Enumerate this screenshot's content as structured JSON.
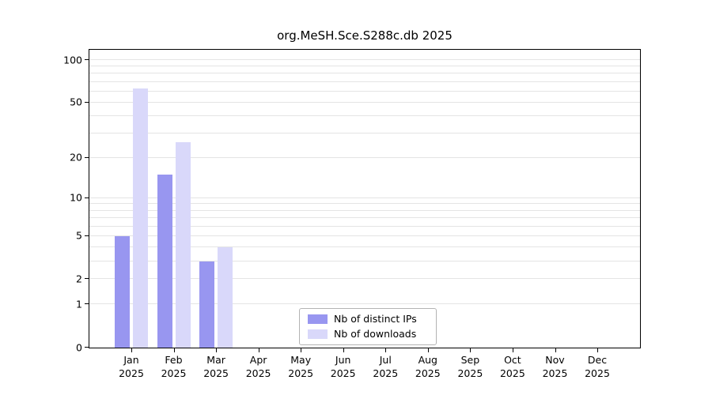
{
  "chart_data": {
    "type": "bar",
    "title": "org.MeSH.Sce.S288c.db 2025",
    "year": "2025",
    "categories": [
      "Jan",
      "Feb",
      "Mar",
      "Apr",
      "May",
      "Jun",
      "Jul",
      "Aug",
      "Sep",
      "Oct",
      "Nov",
      "Dec"
    ],
    "series": [
      {
        "name": "Nb of distinct IPs",
        "color": "#9896f0",
        "values": [
          5,
          15,
          3,
          0,
          0,
          0,
          0,
          0,
          0,
          0,
          0,
          0
        ]
      },
      {
        "name": "Nb of downloads",
        "color": "#d9d8fa",
        "values": [
          63,
          26,
          4,
          0,
          0,
          0,
          0,
          0,
          0,
          0,
          0,
          0
        ]
      }
    ],
    "y_ticks": [
      0,
      1,
      2,
      5,
      10,
      20,
      50,
      100
    ],
    "grid_values": [
      1,
      2,
      3,
      4,
      5,
      6,
      7,
      8,
      9,
      10,
      20,
      30,
      40,
      50,
      60,
      70,
      80,
      90,
      100
    ],
    "y_scale": "log10(1+x)",
    "ylim": [
      0,
      121
    ],
    "grid": "on",
    "legend_position": "lower-center",
    "xlabel": "",
    "ylabel": ""
  }
}
